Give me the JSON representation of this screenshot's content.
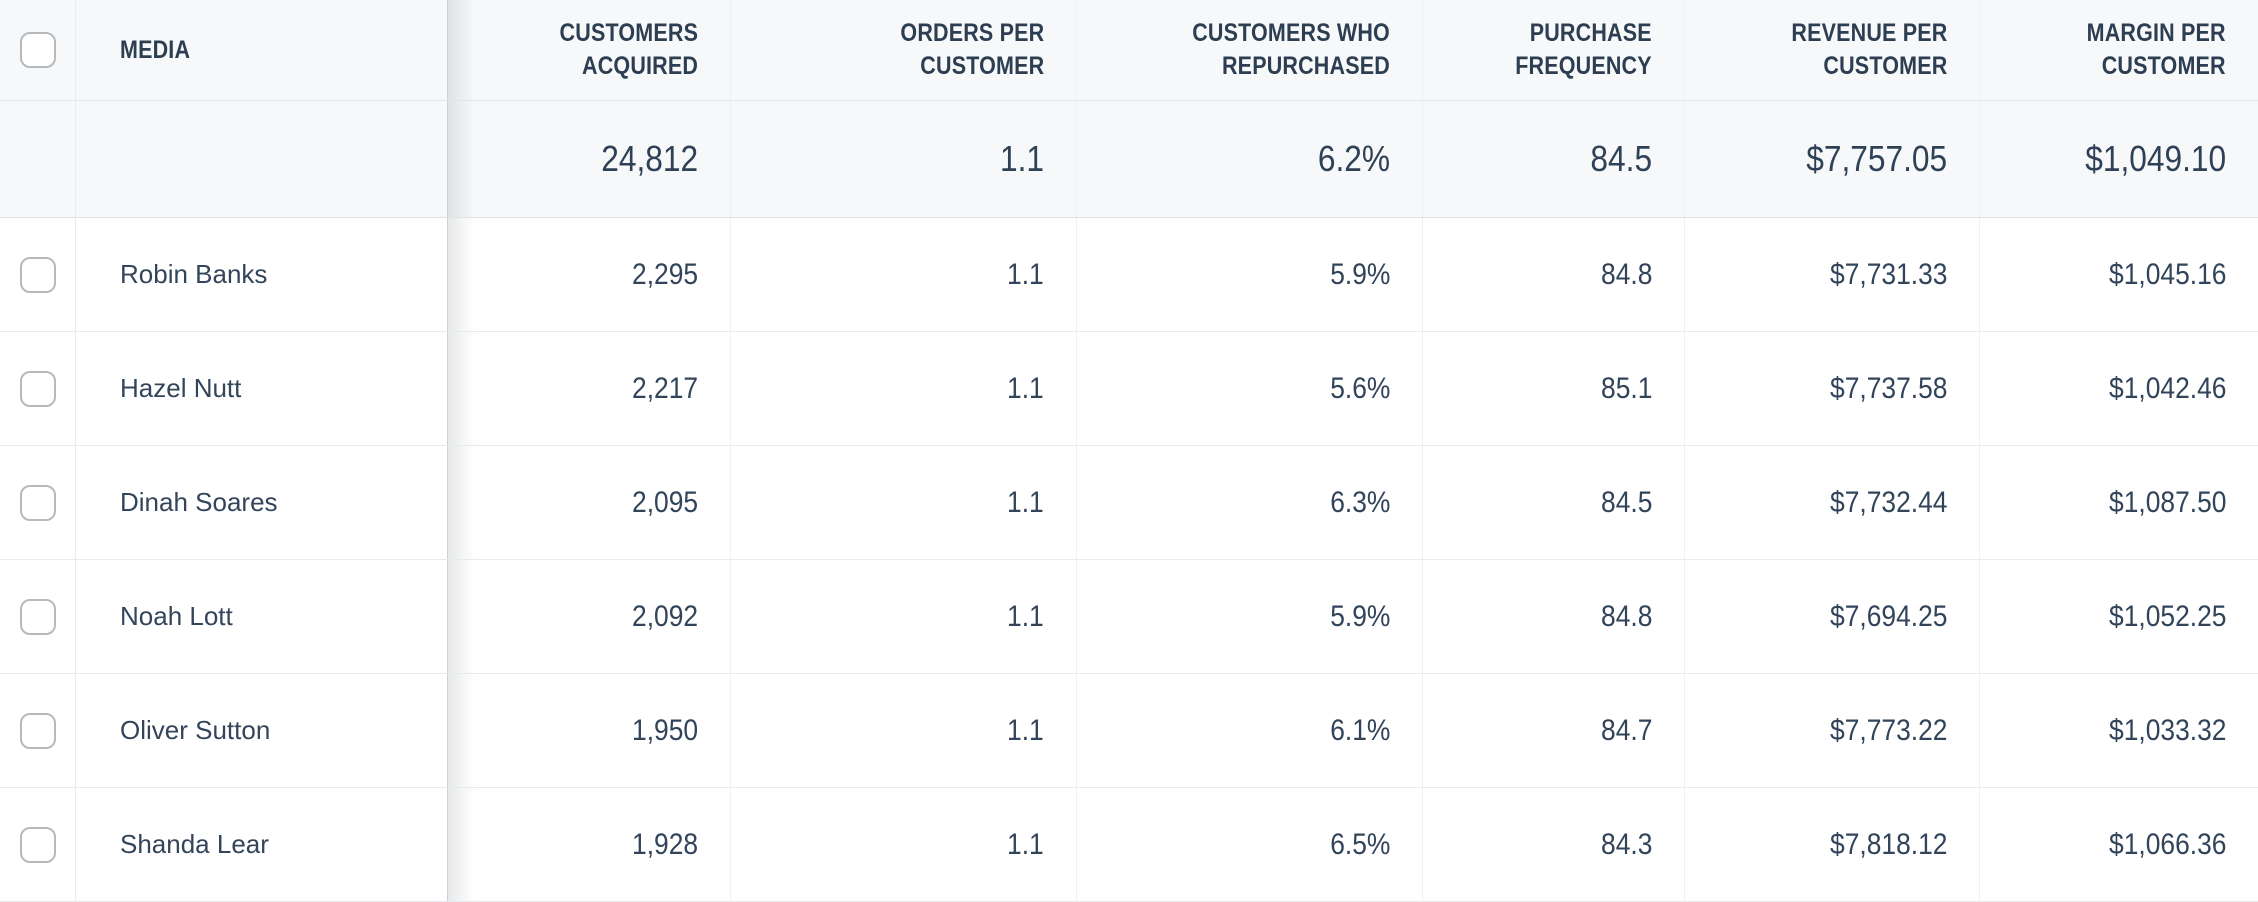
{
  "table": {
    "columns": [
      {
        "label": "MEDIA",
        "line1": "MEDIA",
        "line2": ""
      },
      {
        "label": "CUSTOMERS ACQUIRED",
        "line1": "CUSTOMERS",
        "line2": "ACQUIRED"
      },
      {
        "label": "ORDERS PER CUSTOMER",
        "line1": "ORDERS PER",
        "line2": "CUSTOMER"
      },
      {
        "label": "CUSTOMERS WHO REPURCHASED",
        "line1": "CUSTOMERS WHO",
        "line2": "REPURCHASED"
      },
      {
        "label": "PURCHASE FREQUENCY",
        "line1": "PURCHASE",
        "line2": "FREQUENCY"
      },
      {
        "label": "REVENUE PER CUSTOMER",
        "line1": "REVENUE PER",
        "line2": "CUSTOMER"
      },
      {
        "label": "MARGIN PER CUSTOMER",
        "line1": "MARGIN PER",
        "line2": "CUSTOMER"
      }
    ],
    "totals": {
      "values": [
        "24,812",
        "1.1",
        "6.2%",
        "84.5",
        "$7,757.05",
        "$1,049.10"
      ]
    },
    "rows": [
      {
        "media": "Robin Banks",
        "values": [
          "2,295",
          "1.1",
          "5.9%",
          "84.8",
          "$7,731.33",
          "$1,045.16"
        ]
      },
      {
        "media": "Hazel Nutt",
        "values": [
          "2,217",
          "1.1",
          "5.6%",
          "85.1",
          "$7,737.58",
          "$1,042.46"
        ]
      },
      {
        "media": "Dinah Soares",
        "values": [
          "2,095",
          "1.1",
          "6.3%",
          "84.5",
          "$7,732.44",
          "$1,087.50"
        ]
      },
      {
        "media": "Noah Lott",
        "values": [
          "2,092",
          "1.1",
          "5.9%",
          "84.8",
          "$7,694.25",
          "$1,052.25"
        ]
      },
      {
        "media": "Oliver Sutton",
        "values": [
          "1,950",
          "1.1",
          "6.1%",
          "84.7",
          "$7,773.22",
          "$1,033.32"
        ]
      },
      {
        "media": "Shanda Lear",
        "values": [
          "1,928",
          "1.1",
          "6.5%",
          "84.3",
          "$7,818.12",
          "$1,066.36"
        ]
      }
    ]
  },
  "colors": {
    "header_background": "#f7f8f9",
    "row_background": "#ffffff",
    "text_primary": "#33455b",
    "header_text": "#2d3e52",
    "border": "#e8ebee",
    "checkbox_border": "#b6babd",
    "frozen_column_shadow": "rgba(33,43,54,0.11)"
  }
}
